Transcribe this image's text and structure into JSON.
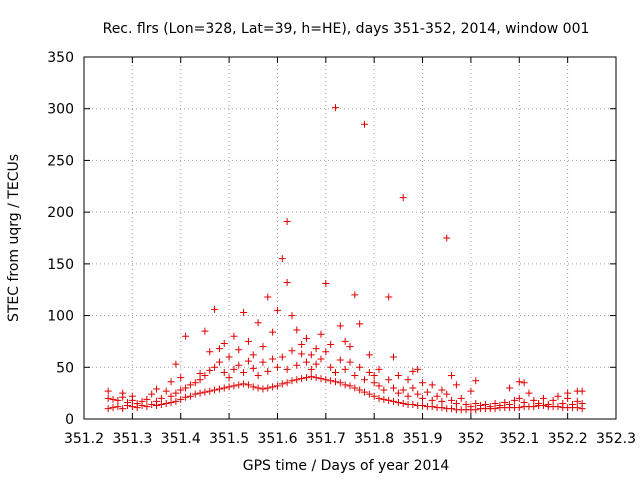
{
  "chart_data": {
    "type": "scatter",
    "title": "Rec. flrs (Lon=328, Lat=39, h=HE), days 351-352, 2014, window 001",
    "xlabel": "GPS time / Days of year 2014",
    "ylabel": "STEC from uqrg / TECUs",
    "xlim": [
      351.2,
      352.3
    ],
    "ylim": [
      0,
      350
    ],
    "xticks": [
      "351.2",
      "351.3",
      "351.4",
      "351.5",
      "351.6",
      "351.7",
      "351.8",
      "351.9",
      "352",
      "352.1",
      "352.2",
      "352.3"
    ],
    "yticks": [
      "0",
      "50",
      "100",
      "150",
      "200",
      "250",
      "300",
      "350"
    ],
    "grid": true,
    "marker": "+",
    "color": "#e00000",
    "points": [
      [
        351.25,
        10
      ],
      [
        351.25,
        20
      ],
      [
        351.25,
        27
      ],
      [
        351.26,
        11
      ],
      [
        351.26,
        19
      ],
      [
        351.27,
        12
      ],
      [
        351.27,
        18
      ],
      [
        351.28,
        10
      ],
      [
        351.28,
        21
      ],
      [
        351.28,
        25
      ],
      [
        351.29,
        13
      ],
      [
        351.29,
        16
      ],
      [
        351.3,
        12
      ],
      [
        351.3,
        18
      ],
      [
        351.3,
        22
      ],
      [
        351.31,
        11
      ],
      [
        351.31,
        15
      ],
      [
        351.32,
        13
      ],
      [
        351.32,
        17
      ],
      [
        351.33,
        12
      ],
      [
        351.33,
        19
      ],
      [
        351.34,
        14
      ],
      [
        351.34,
        24
      ],
      [
        351.35,
        13
      ],
      [
        351.35,
        17
      ],
      [
        351.35,
        29
      ],
      [
        351.36,
        14
      ],
      [
        351.36,
        20
      ],
      [
        351.37,
        15
      ],
      [
        351.37,
        27
      ],
      [
        351.38,
        16
      ],
      [
        351.38,
        22
      ],
      [
        351.38,
        36
      ],
      [
        351.39,
        17
      ],
      [
        351.39,
        25
      ],
      [
        351.39,
        53
      ],
      [
        351.4,
        19
      ],
      [
        351.4,
        28
      ],
      [
        351.4,
        40
      ],
      [
        351.41,
        21
      ],
      [
        351.41,
        30
      ],
      [
        351.41,
        80
      ],
      [
        351.42,
        22
      ],
      [
        351.42,
        33
      ],
      [
        351.43,
        24
      ],
      [
        351.43,
        35
      ],
      [
        351.44,
        25
      ],
      [
        351.44,
        38
      ],
      [
        351.44,
        44
      ],
      [
        351.45,
        26
      ],
      [
        351.45,
        42
      ],
      [
        351.45,
        85
      ],
      [
        351.46,
        27
      ],
      [
        351.46,
        47
      ],
      [
        351.46,
        65
      ],
      [
        351.47,
        28
      ],
      [
        351.47,
        50
      ],
      [
        351.47,
        106
      ],
      [
        351.48,
        29
      ],
      [
        351.48,
        55
      ],
      [
        351.48,
        68
      ],
      [
        351.49,
        30
      ],
      [
        351.49,
        45
      ],
      [
        351.49,
        73
      ],
      [
        351.5,
        31
      ],
      [
        351.5,
        40
      ],
      [
        351.5,
        60
      ],
      [
        351.51,
        32
      ],
      [
        351.51,
        48
      ],
      [
        351.51,
        80
      ],
      [
        351.52,
        33
      ],
      [
        351.52,
        52
      ],
      [
        351.52,
        67
      ],
      [
        351.53,
        34
      ],
      [
        351.53,
        45
      ],
      [
        351.53,
        103
      ],
      [
        351.54,
        33
      ],
      [
        351.54,
        56
      ],
      [
        351.54,
        75
      ],
      [
        351.55,
        31
      ],
      [
        351.55,
        49
      ],
      [
        351.55,
        62
      ],
      [
        351.56,
        30
      ],
      [
        351.56,
        42
      ],
      [
        351.56,
        93
      ],
      [
        351.57,
        29
      ],
      [
        351.57,
        55
      ],
      [
        351.57,
        70
      ],
      [
        351.58,
        30
      ],
      [
        351.58,
        46
      ],
      [
        351.58,
        118
      ],
      [
        351.59,
        31
      ],
      [
        351.59,
        58
      ],
      [
        351.59,
        84
      ],
      [
        351.6,
        32
      ],
      [
        351.6,
        50
      ],
      [
        351.6,
        105
      ],
      [
        351.61,
        34
      ],
      [
        351.61,
        60
      ],
      [
        351.61,
        155
      ],
      [
        351.62,
        35
      ],
      [
        351.62,
        48
      ],
      [
        351.62,
        132
      ],
      [
        351.62,
        191
      ],
      [
        351.63,
        37
      ],
      [
        351.63,
        66
      ],
      [
        351.63,
        100
      ],
      [
        351.64,
        38
      ],
      [
        351.64,
        52
      ],
      [
        351.64,
        86
      ],
      [
        351.65,
        39
      ],
      [
        351.65,
        72
      ],
      [
        351.65,
        63
      ],
      [
        351.66,
        40
      ],
      [
        351.66,
        55
      ],
      [
        351.66,
        78
      ],
      [
        351.67,
        41
      ],
      [
        351.67,
        62
      ],
      [
        351.67,
        48
      ],
      [
        351.68,
        40
      ],
      [
        351.68,
        68
      ],
      [
        351.68,
        53
      ],
      [
        351.69,
        39
      ],
      [
        351.69,
        58
      ],
      [
        351.69,
        82
      ],
      [
        351.7,
        38
      ],
      [
        351.7,
        65
      ],
      [
        351.7,
        131
      ],
      [
        351.71,
        37
      ],
      [
        351.71,
        50
      ],
      [
        351.71,
        72
      ],
      [
        351.72,
        36
      ],
      [
        351.72,
        45
      ],
      [
        351.72,
        301
      ],
      [
        351.73,
        35
      ],
      [
        351.73,
        57
      ],
      [
        351.73,
        90
      ],
      [
        351.74,
        33
      ],
      [
        351.74,
        48
      ],
      [
        351.74,
        75
      ],
      [
        351.75,
        32
      ],
      [
        351.75,
        55
      ],
      [
        351.75,
        70
      ],
      [
        351.76,
        30
      ],
      [
        351.76,
        42
      ],
      [
        351.76,
        120
      ],
      [
        351.77,
        28
      ],
      [
        351.77,
        50
      ],
      [
        351.77,
        92
      ],
      [
        351.78,
        26
      ],
      [
        351.78,
        38
      ],
      [
        351.78,
        285
      ],
      [
        351.79,
        24
      ],
      [
        351.79,
        45
      ],
      [
        351.79,
        62
      ],
      [
        351.8,
        22
      ],
      [
        351.8,
        35
      ],
      [
        351.8,
        42
      ],
      [
        351.81,
        20
      ],
      [
        351.81,
        32
      ],
      [
        351.81,
        48
      ],
      [
        351.82,
        19
      ],
      [
        351.82,
        28
      ],
      [
        351.83,
        18
      ],
      [
        351.83,
        38
      ],
      [
        351.83,
        118
      ],
      [
        351.84,
        17
      ],
      [
        351.84,
        30
      ],
      [
        351.84,
        60
      ],
      [
        351.85,
        16
      ],
      [
        351.85,
        25
      ],
      [
        351.85,
        42
      ],
      [
        351.86,
        15
      ],
      [
        351.86,
        28
      ],
      [
        351.86,
        214
      ],
      [
        351.87,
        14
      ],
      [
        351.87,
        22
      ],
      [
        351.87,
        38
      ],
      [
        351.88,
        14
      ],
      [
        351.88,
        30
      ],
      [
        351.88,
        46
      ],
      [
        351.89,
        13
      ],
      [
        351.89,
        24
      ],
      [
        351.89,
        48
      ],
      [
        351.9,
        13
      ],
      [
        351.9,
        20
      ],
      [
        351.9,
        35
      ],
      [
        351.91,
        12
      ],
      [
        351.91,
        26
      ],
      [
        351.92,
        12
      ],
      [
        351.92,
        18
      ],
      [
        351.92,
        33
      ],
      [
        351.93,
        11
      ],
      [
        351.93,
        22
      ],
      [
        351.94,
        11
      ],
      [
        351.94,
        17
      ],
      [
        351.94,
        28
      ],
      [
        351.95,
        10
      ],
      [
        351.95,
        24
      ],
      [
        351.95,
        175
      ],
      [
        351.96,
        10
      ],
      [
        351.96,
        18
      ],
      [
        351.96,
        42
      ],
      [
        351.97,
        9
      ],
      [
        351.97,
        15
      ],
      [
        351.97,
        33
      ],
      [
        351.98,
        9
      ],
      [
        351.98,
        20
      ],
      [
        351.99,
        9
      ],
      [
        351.99,
        14
      ],
      [
        352.0,
        9
      ],
      [
        352.0,
        12
      ],
      [
        352.0,
        27
      ],
      [
        352.01,
        9
      ],
      [
        352.01,
        15
      ],
      [
        352.01,
        37
      ],
      [
        352.02,
        10
      ],
      [
        352.02,
        13
      ],
      [
        352.03,
        10
      ],
      [
        352.03,
        14
      ],
      [
        352.04,
        10
      ],
      [
        352.04,
        12
      ],
      [
        352.05,
        10
      ],
      [
        352.05,
        15
      ],
      [
        352.06,
        11
      ],
      [
        352.06,
        13
      ],
      [
        352.07,
        11
      ],
      [
        352.07,
        16
      ],
      [
        352.08,
        11
      ],
      [
        352.08,
        14
      ],
      [
        352.08,
        30
      ],
      [
        352.09,
        11
      ],
      [
        352.09,
        18
      ],
      [
        352.1,
        11
      ],
      [
        352.1,
        20
      ],
      [
        352.1,
        36
      ],
      [
        352.11,
        12
      ],
      [
        352.11,
        16
      ],
      [
        352.11,
        35
      ],
      [
        352.12,
        12
      ],
      [
        352.12,
        25
      ],
      [
        352.13,
        12
      ],
      [
        352.13,
        18
      ],
      [
        352.14,
        13
      ],
      [
        352.14,
        15
      ],
      [
        352.15,
        13
      ],
      [
        352.15,
        20
      ],
      [
        352.16,
        12
      ],
      [
        352.16,
        14
      ],
      [
        352.17,
        12
      ],
      [
        352.17,
        18
      ],
      [
        352.18,
        12
      ],
      [
        352.18,
        22
      ],
      [
        352.19,
        11
      ],
      [
        352.19,
        15
      ],
      [
        352.2,
        11
      ],
      [
        352.2,
        20
      ],
      [
        352.2,
        25
      ],
      [
        352.21,
        11
      ],
      [
        352.21,
        14
      ],
      [
        352.22,
        11
      ],
      [
        352.22,
        17
      ],
      [
        352.22,
        27
      ],
      [
        352.23,
        10
      ],
      [
        352.23,
        15
      ],
      [
        352.23,
        27
      ]
    ]
  }
}
